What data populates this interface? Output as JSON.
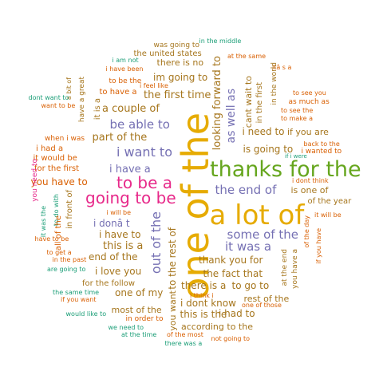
{
  "colors": {
    "teal": "#1b9e77",
    "orange": "#d95f02",
    "purple": "#7570b3",
    "pink": "#e7298a",
    "green": "#66a61e",
    "gold": "#e6ab02",
    "brown": "#a6761d",
    "grey": "#666666"
  },
  "words": [
    {
      "id": "w1",
      "text": "one of the",
      "color": "gold"
    },
    {
      "id": "w2",
      "text": "a lot of",
      "color": "gold"
    },
    {
      "id": "w3",
      "text": "thanks for the",
      "color": "green"
    },
    {
      "id": "w4",
      "text": "to be a",
      "color": "pink"
    },
    {
      "id": "w5",
      "text": "going to be",
      "color": "pink"
    },
    {
      "id": "w6",
      "text": "i want to",
      "color": "purple"
    },
    {
      "id": "w7",
      "text": "be able to",
      "color": "purple"
    },
    {
      "id": "w8",
      "text": "the end of",
      "color": "purple"
    },
    {
      "id": "w9",
      "text": "some of the",
      "color": "purple"
    },
    {
      "id": "w10",
      "text": "it was a",
      "color": "purple"
    },
    {
      "id": "w11",
      "text": "out of the",
      "color": "purple"
    },
    {
      "id": "w12",
      "text": "as well as",
      "color": "purple"
    },
    {
      "id": "w13",
      "text": "looking forward to",
      "color": "brown"
    },
    {
      "id": "w14",
      "text": "part of the",
      "color": "brown"
    },
    {
      "id": "w15",
      "text": "a couple of",
      "color": "brown"
    },
    {
      "id": "w16",
      "text": "the first time",
      "color": "brown"
    },
    {
      "id": "w17",
      "text": "im going to",
      "color": "brown"
    },
    {
      "id": "w18",
      "text": "there is no",
      "color": "brown"
    },
    {
      "id": "w19",
      "text": "the united states",
      "color": "brown"
    },
    {
      "id": "w20",
      "text": "was going to",
      "color": "brown"
    },
    {
      "id": "w21",
      "text": "in the middle",
      "color": "teal"
    },
    {
      "id": "w22",
      "text": "at the same",
      "color": "orange"
    },
    {
      "id": "w23",
      "text": "i am not",
      "color": "teal"
    },
    {
      "id": "w24",
      "text": "i have been",
      "color": "orange"
    },
    {
      "id": "w25",
      "text": "to be the",
      "color": "orange"
    },
    {
      "id": "w26",
      "text": "i feel like",
      "color": "orange"
    },
    {
      "id": "w27",
      "text": "to have a",
      "color": "orange"
    },
    {
      "id": "w28",
      "text": "it is a",
      "color": "brown"
    },
    {
      "id": "w29",
      "text": "have a great",
      "color": "brown"
    },
    {
      "id": "w30",
      "text": "a bit of",
      "color": "brown"
    },
    {
      "id": "w31",
      "text": "dont want to",
      "color": "teal"
    },
    {
      "id": "w32",
      "text": "want to be",
      "color": "orange"
    },
    {
      "id": "w33",
      "text": "when i was",
      "color": "orange"
    },
    {
      "id": "w34",
      "text": "i had a",
      "color": "orange"
    },
    {
      "id": "w35",
      "text": "it would be",
      "color": "orange"
    },
    {
      "id": "w36",
      "text": "for the first",
      "color": "orange"
    },
    {
      "id": "w37",
      "text": "you have to",
      "color": "orange"
    },
    {
      "id": "w38",
      "text": "you need to",
      "color": "pink"
    },
    {
      "id": "w39",
      "text": "i have a",
      "color": "purple"
    },
    {
      "id": "w40",
      "text": "i donâ t",
      "color": "purple"
    },
    {
      "id": "w41",
      "text": "i have to",
      "color": "brown"
    },
    {
      "id": "w42",
      "text": "this is a",
      "color": "brown"
    },
    {
      "id": "w43",
      "text": "end of the",
      "color": "brown"
    },
    {
      "id": "w44",
      "text": "i love you",
      "color": "brown"
    },
    {
      "id": "w45",
      "text": "i will be",
      "color": "orange"
    },
    {
      "id": "w46",
      "text": "to do with",
      "color": "teal"
    },
    {
      "id": "w47",
      "text": "in front of",
      "color": "brown"
    },
    {
      "id": "w48",
      "text": "it was the",
      "color": "teal"
    },
    {
      "id": "w49",
      "text": "all of the",
      "color": "orange"
    },
    {
      "id": "w50",
      "text": "have to be",
      "color": "orange"
    },
    {
      "id": "w51",
      "text": "to get a",
      "color": "orange"
    },
    {
      "id": "w52",
      "text": "in the past",
      "color": "orange"
    },
    {
      "id": "w53",
      "text": "are going to",
      "color": "teal"
    },
    {
      "id": "w54",
      "text": "for the follow",
      "color": "brown"
    },
    {
      "id": "w55",
      "text": "the same time",
      "color": "teal"
    },
    {
      "id": "w56",
      "text": "if you want",
      "color": "orange"
    },
    {
      "id": "w57",
      "text": "one of my",
      "color": "brown"
    },
    {
      "id": "w58",
      "text": "most of the",
      "color": "brown"
    },
    {
      "id": "w59",
      "text": "would like to",
      "color": "teal"
    },
    {
      "id": "w60",
      "text": "in order to",
      "color": "orange"
    },
    {
      "id": "w61",
      "text": "we need to",
      "color": "teal"
    },
    {
      "id": "w62",
      "text": "at the time",
      "color": "teal"
    },
    {
      "id": "w63",
      "text": "of the most",
      "color": "orange"
    },
    {
      "id": "w64",
      "text": "there was a",
      "color": "teal"
    },
    {
      "id": "w65",
      "text": "not going to",
      "color": "orange"
    },
    {
      "id": "w66",
      "text": "according to the",
      "color": "brown"
    },
    {
      "id": "w67",
      "text": "this is the",
      "color": "brown"
    },
    {
      "id": "w68",
      "text": "i had to",
      "color": "brown"
    },
    {
      "id": "w69",
      "text": "i dont know",
      "color": "brown"
    },
    {
      "id": "w70",
      "text": "i think i",
      "color": "orange"
    },
    {
      "id": "w71",
      "text": "there is a",
      "color": "brown"
    },
    {
      "id": "w72",
      "text": "to go to",
      "color": "brown"
    },
    {
      "id": "w73",
      "text": "the fact that",
      "color": "brown"
    },
    {
      "id": "w74",
      "text": "thank you for",
      "color": "brown"
    },
    {
      "id": "w75",
      "text": "you want",
      "color": "brown"
    },
    {
      "id": "w76",
      "text": "to the rest of",
      "color": "brown"
    },
    {
      "id": "w77",
      "text": "rest of the",
      "color": "brown"
    },
    {
      "id": "w78",
      "text": "one of those",
      "color": "orange"
    },
    {
      "id": "w79",
      "text": "at the end",
      "color": "brown"
    },
    {
      "id": "w80",
      "text": "you have a",
      "color": "brown"
    },
    {
      "id": "w81",
      "text": "if you have",
      "color": "orange"
    },
    {
      "id": "w82",
      "text": "of the day",
      "color": "orange"
    },
    {
      "id": "w83",
      "text": "it will be",
      "color": "orange"
    },
    {
      "id": "w84",
      "text": "of the year",
      "color": "brown"
    },
    {
      "id": "w85",
      "text": "is one of",
      "color": "brown"
    },
    {
      "id": "w86",
      "text": "i dont think",
      "color": "orange"
    },
    {
      "id": "w87",
      "text": "i wanted to",
      "color": "orange"
    },
    {
      "id": "w88",
      "text": "back to the",
      "color": "orange"
    },
    {
      "id": "w89",
      "text": "is going to",
      "color": "brown"
    },
    {
      "id": "w90",
      "text": "if you are",
      "color": "brown"
    },
    {
      "id": "w91",
      "text": "i need to",
      "color": "brown"
    },
    {
      "id": "w92",
      "text": "as much as",
      "color": "orange"
    },
    {
      "id": "w93",
      "text": "to see the",
      "color": "orange"
    },
    {
      "id": "w94",
      "text": "to make a",
      "color": "orange"
    },
    {
      "id": "w95",
      "text": "to see you",
      "color": "orange"
    },
    {
      "id": "w96",
      "text": "itâ s a",
      "color": "orange"
    },
    {
      "id": "w97",
      "text": "in the world",
      "color": "brown"
    },
    {
      "id": "w98",
      "text": "in the first",
      "color": "brown"
    },
    {
      "id": "w99",
      "text": "cant wait to",
      "color": "brown"
    },
    {
      "id": "w100",
      "text": "if i were",
      "color": "teal"
    }
  ]
}
